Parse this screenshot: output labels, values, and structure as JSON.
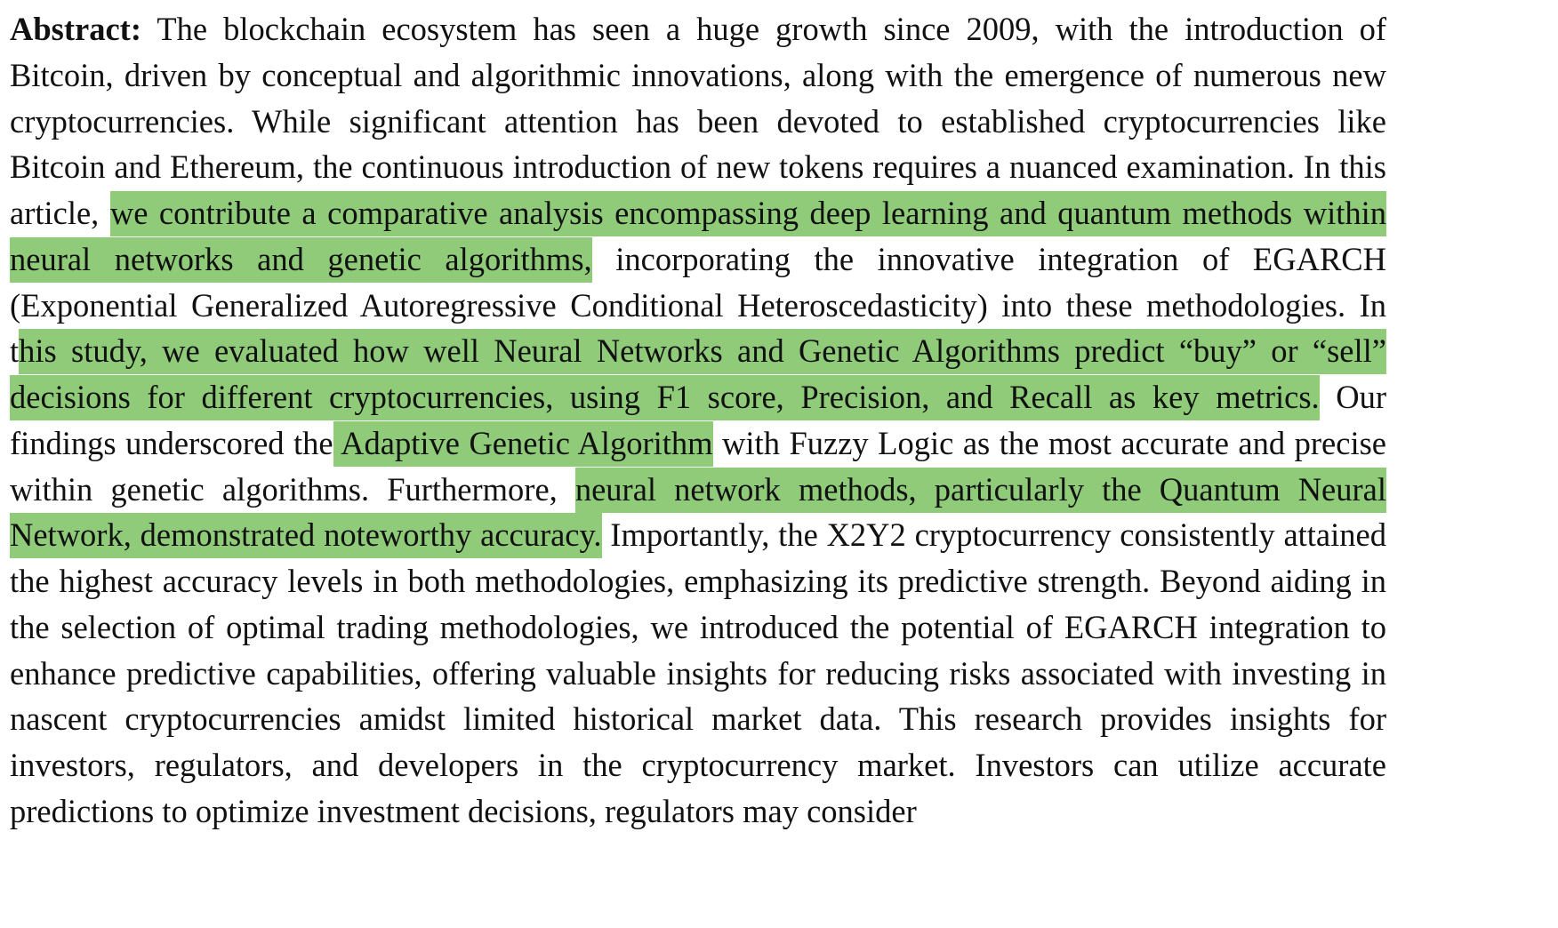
{
  "abstract": {
    "label": "Abstract:",
    "highlight_color": "#8fcb79",
    "segments": [
      {
        "text": " The blockchain ecosystem has seen a huge growth since 2009, with the introduction of Bitcoin, driven by conceptual and algorithmic innovations, along with the emergence of numerous new cryptocurrencies. While significant attention has been devoted to established cryptocurrencies like Bitcoin and Ethereum, the continuous introduction of new tokens requires a nuanced examination. In this article, ",
        "highlighted": false
      },
      {
        "text": "we contribute a comparative analysis encompassing deep learning and quantum methods within neural networks and genetic algorithms,",
        "highlighted": true
      },
      {
        "text": " incorporating the innovative integration of EGARCH (Exponential Generalized Autoregressive Conditional Heteroscedasticity) into these methodologies. In t",
        "highlighted": false
      },
      {
        "text": "his study, we evaluated how well Neural Networks and Genetic Algorithms predict “buy” or “sell” decisions for different cryptocurrencies, using F1 score, Precision, and Recall as key metrics.",
        "highlighted": true
      },
      {
        "text": " Our findings underscored the",
        "highlighted": false
      },
      {
        "text": " Adaptive Genetic Algorithm",
        "highlighted": true
      },
      {
        "text": " with Fuzzy Logic as the most accurate and precise within genetic algorithms. Furthermore, ",
        "highlighted": false
      },
      {
        "text": "neural network methods, particularly the Quantum Neural Network, demonstrated noteworthy accuracy.",
        "highlighted": true
      },
      {
        "text": " Importantly, the X2Y2 cryptocurrency consistently attained the highest accuracy levels in both methodologies, emphasizing its predictive strength. Beyond aiding in the selection of optimal trading methodologies, we introduced the potential of EGARCH integration to enhance predictive capabilities, offering valuable insights for reducing risks associated with investing in nascent cryptocurrencies amidst limited historical market data. This research provides insights for investors, regulators, and developers in the cryptocurrency market. Investors can utilize accurate predictions to optimize investment decisions, regulators may consider",
        "highlighted": false
      }
    ]
  }
}
